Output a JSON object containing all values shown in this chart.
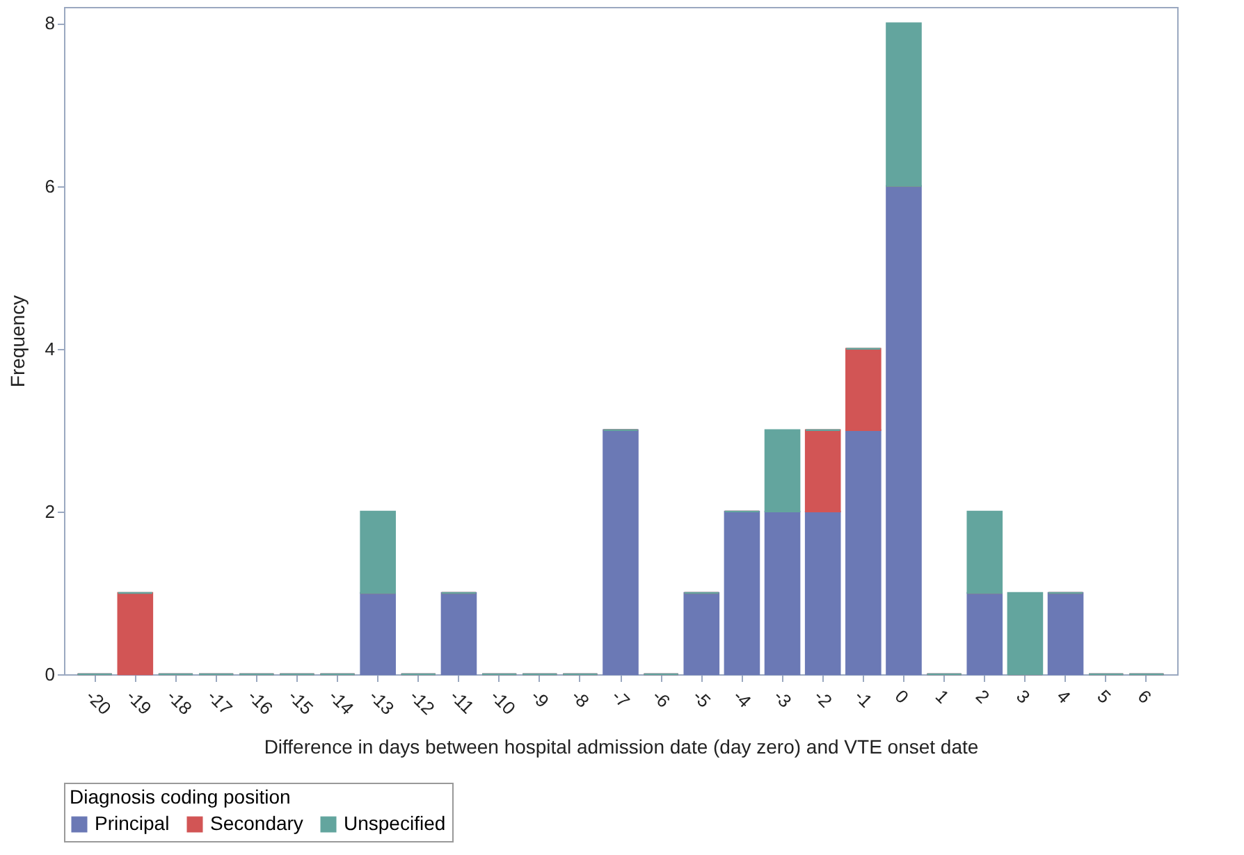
{
  "chart_data": {
    "type": "bar",
    "stacked": true,
    "xlabel": "Difference in days between hospital admission date (day zero) and VTE onset date",
    "ylabel": "Frequency",
    "legend_title": "Diagnosis coding position",
    "legend": "bottom",
    "grid": false,
    "categories": [
      "-20",
      "-19",
      "-18",
      "-17",
      "-16",
      "-15",
      "-14",
      "-13",
      "-12",
      "-11",
      "-10",
      "-9",
      "-8",
      "-7",
      "-6",
      "-5",
      "-4",
      "-3",
      "-2",
      "-1",
      "0",
      "1",
      "2",
      "3",
      "4",
      "5",
      "6"
    ],
    "ylim": [
      0,
      8.2
    ],
    "yticks": [
      0,
      2,
      4,
      6,
      8
    ],
    "series": [
      {
        "name": "Principal",
        "color": "#6b79b5",
        "values": [
          0,
          0,
          0,
          0,
          0,
          0,
          0,
          1,
          0,
          1,
          0,
          0,
          0,
          3,
          0,
          1,
          2,
          2,
          2,
          3,
          6,
          0,
          1,
          0,
          1,
          0,
          0
        ]
      },
      {
        "name": "Secondary",
        "color": "#d25555",
        "values": [
          0,
          1,
          0,
          0,
          0,
          0,
          0,
          0,
          0,
          0,
          0,
          0,
          0,
          0,
          0,
          0,
          0,
          0,
          1,
          1,
          0,
          0,
          0,
          0,
          0,
          0,
          0
        ]
      },
      {
        "name": "Unspecified",
        "color": "#63a59e",
        "values": [
          0,
          0,
          0,
          0,
          0,
          0,
          0,
          1,
          0,
          0,
          0,
          0,
          0,
          0,
          0,
          0,
          0,
          1,
          0,
          0,
          2,
          0,
          1,
          1,
          0,
          0,
          0
        ]
      }
    ]
  }
}
